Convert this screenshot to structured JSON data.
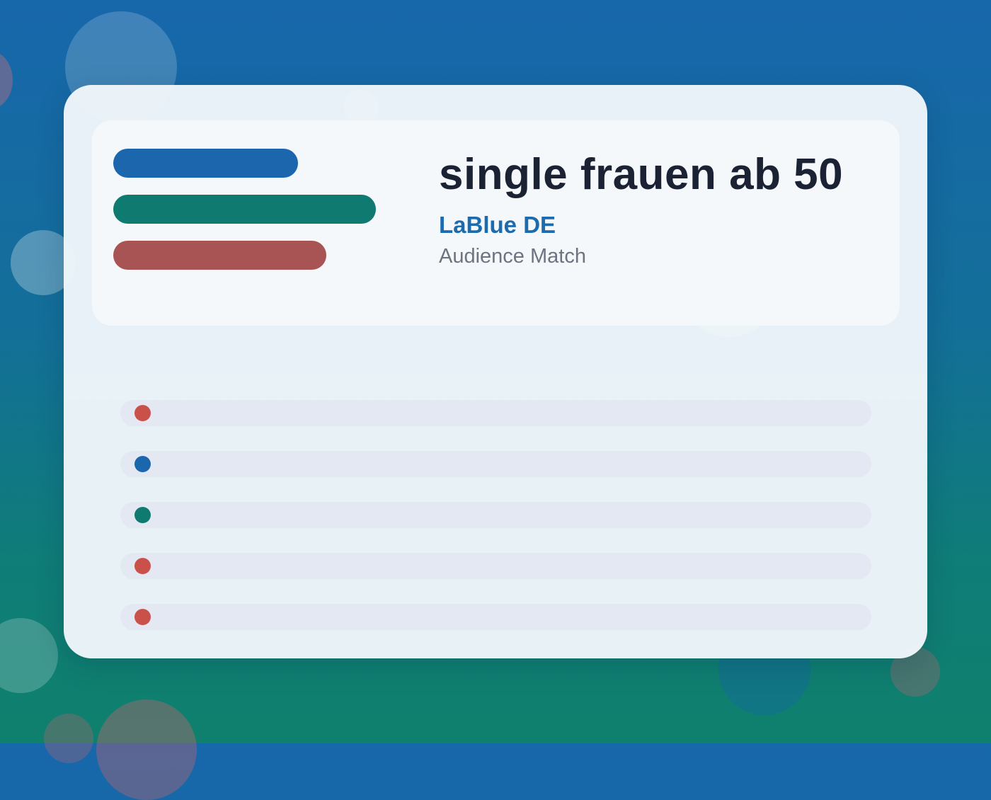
{
  "header": {
    "title": "single frauen ab 50",
    "brand": "LaBlue DE",
    "subtitle": "Audience Match"
  },
  "colors": {
    "accent_blue": "#1b66ad",
    "accent_green": "#0f7b70",
    "accent_red": "#a85454",
    "dot_red": "#c9514a",
    "dot_blue": "#1b66ad",
    "dot_green": "#0f7b70"
  },
  "rows": [
    {
      "dot_color": "#c9514a"
    },
    {
      "dot_color": "#1b66ad"
    },
    {
      "dot_color": "#0f7b70"
    },
    {
      "dot_color": "#c9514a"
    },
    {
      "dot_color": "#c9514a"
    }
  ]
}
